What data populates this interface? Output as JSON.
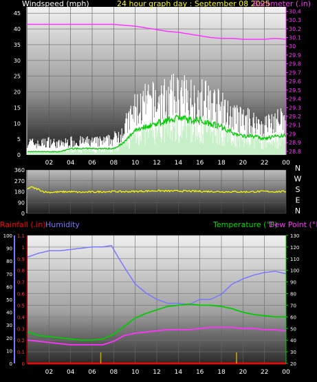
{
  "header": {
    "windspeed_label": "Windspeed (mph)",
    "title": "24 hour graph day : September 08 2025",
    "barometer_label": "Barometer (.in)"
  },
  "direction_letters": [
    "N",
    "W",
    "S",
    "E",
    "N"
  ],
  "lower_header": {
    "rainfall_label": "Rainfall (.in)",
    "humidity_label": "Humidity",
    "temperature_label": "Temperature (°F)",
    "dewpoint_label": "Dew Point (°F)"
  },
  "colors": {
    "wind_gust": "#ffffff",
    "wind_avg_band": "#c8f0c8",
    "wind_avg_line": "#00cc00",
    "barometer": "#ff33ff",
    "direction": "#ffff00",
    "humidity": "#7777ff",
    "temperature": "#00cc00",
    "dewpoint": "#ff33ff",
    "rainfall": "#ff0000",
    "rain_marks": "#ccaa00"
  },
  "chart_data": [
    {
      "type": "line",
      "id": "wind_baro",
      "x_ticks": [
        "02",
        "04",
        "06",
        "08",
        "10",
        "12",
        "14",
        "16",
        "18",
        "20",
        "22",
        "00"
      ],
      "x_range_hours": [
        0,
        24
      ],
      "y_left_ticks": [
        "0",
        "5",
        "10",
        "15",
        "20",
        "25",
        "30",
        "35",
        "40",
        "45"
      ],
      "y_left_range": [
        0,
        47
      ],
      "y_right_ticks": [
        "28.8",
        "28.9",
        "29",
        "29.1",
        "29.2",
        "29.3",
        "29.4",
        "29.5",
        "29.6",
        "29.7",
        "29.8",
        "29.9",
        "30",
        "30.1",
        "30.2",
        "30.3",
        "30.4"
      ],
      "y_right_range": [
        28.76,
        30.45
      ],
      "series": [
        {
          "key": "gust",
          "axis": "left",
          "x": [
            0,
            1,
            2,
            3,
            4,
            5,
            6,
            7,
            8,
            9,
            10,
            11,
            12,
            13,
            14,
            15,
            16,
            17,
            18,
            19,
            20,
            21,
            22,
            23,
            24
          ],
          "values": [
            5,
            4,
            5,
            4,
            5,
            5,
            5,
            5,
            6,
            10,
            17,
            19,
            20,
            21,
            22,
            21,
            21,
            20,
            17,
            14,
            13,
            12,
            11,
            13,
            12
          ]
        },
        {
          "key": "avg",
          "axis": "left",
          "x": [
            0,
            1,
            2,
            3,
            4,
            5,
            6,
            7,
            8,
            9,
            10,
            11,
            12,
            13,
            14,
            15,
            16,
            17,
            18,
            19,
            20,
            21,
            22,
            23,
            24
          ],
          "values": [
            1,
            1,
            1,
            1,
            2,
            2,
            2,
            2,
            2,
            4,
            8,
            9,
            10,
            11,
            12,
            11,
            11,
            10,
            9,
            7,
            6,
            6,
            5,
            6,
            6
          ]
        },
        {
          "key": "barometer",
          "axis": "right",
          "x": [
            0,
            1,
            2,
            3,
            4,
            5,
            6,
            7,
            8,
            9,
            10,
            11,
            12,
            13,
            14,
            15,
            16,
            17,
            18,
            19,
            20,
            21,
            22,
            23,
            24
          ],
          "values": [
            30.25,
            30.25,
            30.25,
            30.25,
            30.25,
            30.25,
            30.25,
            30.25,
            30.25,
            30.24,
            30.23,
            30.21,
            30.19,
            30.17,
            30.16,
            30.14,
            30.12,
            30.1,
            30.09,
            30.09,
            30.08,
            30.08,
            30.08,
            30.09,
            30.08
          ]
        }
      ]
    },
    {
      "type": "line",
      "id": "direction",
      "y_ticks": [
        "0",
        "90",
        "180",
        "270",
        "360"
      ],
      "y_range": [
        0,
        360
      ],
      "series": [
        {
          "key": "direction",
          "x": [
            0,
            0.3,
            0.6,
            1,
            1.5,
            2,
            3,
            4,
            5,
            6,
            7,
            8,
            9,
            10,
            11,
            12,
            13,
            14,
            15,
            16,
            17,
            18,
            19,
            20,
            21,
            22,
            23,
            24
          ],
          "values": [
            200,
            220,
            210,
            200,
            180,
            175,
            178,
            180,
            175,
            178,
            180,
            182,
            180,
            182,
            185,
            188,
            185,
            186,
            184,
            183,
            182,
            180,
            180,
            178,
            180,
            182,
            180,
            182
          ]
        }
      ]
    },
    {
      "type": "line",
      "id": "temp_humidity",
      "x_ticks": [
        "02",
        "04",
        "06",
        "08",
        "10",
        "12",
        "14",
        "16",
        "18",
        "20",
        "22",
        "00"
      ],
      "y_left_ticks": [
        "0",
        "10",
        "20",
        "30",
        "40",
        "50",
        "60",
        "70",
        "80",
        "90",
        "100"
      ],
      "y_left_range": [
        0,
        100
      ],
      "y_rain_ticks": [
        "0",
        "0.1",
        "0.2",
        "0.3",
        "0.4",
        "0.5",
        "0.6",
        "0.7",
        "0.8",
        "0.9",
        "1",
        "1.1"
      ],
      "y_rain_range": [
        0,
        1.1
      ],
      "y_right_ticks": [
        "20",
        "30",
        "40",
        "50",
        "60",
        "70",
        "80",
        "90",
        "100",
        "110",
        "120",
        "130"
      ],
      "y_right_range": [
        20,
        130
      ],
      "rain_marks_hours": [
        6.8,
        19.4
      ],
      "series": [
        {
          "key": "humidity",
          "axis": "left",
          "x": [
            0,
            1,
            2,
            3,
            4,
            5,
            6,
            7,
            7.8,
            8.2,
            9,
            10,
            11,
            12,
            13,
            14,
            15,
            16,
            17,
            18,
            19,
            20,
            21,
            22,
            23,
            24
          ],
          "values": [
            83,
            86,
            88,
            88,
            89,
            90,
            91,
            91,
            92,
            86,
            75,
            62,
            55,
            50,
            47,
            47,
            46,
            50,
            50,
            54,
            62,
            66,
            69,
            71,
            72,
            70
          ]
        },
        {
          "key": "temperature",
          "axis": "right",
          "x": [
            0,
            1,
            2,
            3,
            4,
            5,
            6,
            7,
            8,
            9,
            10,
            11,
            12,
            13,
            14,
            15,
            16,
            17,
            18,
            19,
            20,
            21,
            22,
            23,
            24
          ],
          "values": [
            47,
            44,
            43,
            42,
            41,
            40,
            40,
            41,
            45,
            52,
            59,
            63,
            66,
            69,
            70,
            71,
            70,
            70,
            69,
            67,
            64,
            62,
            61,
            60,
            60
          ]
        },
        {
          "key": "dewpoint",
          "axis": "right",
          "x": [
            0,
            1,
            2,
            3,
            4,
            5,
            6,
            7,
            8,
            9,
            10,
            11,
            12,
            13,
            14,
            15,
            16,
            17,
            18,
            19,
            20,
            21,
            22,
            23,
            24
          ],
          "values": [
            40,
            39,
            38,
            37,
            36,
            36,
            36,
            36,
            39,
            44,
            46,
            47,
            48,
            49,
            49,
            49,
            50,
            51,
            51,
            51,
            50,
            50,
            49,
            49,
            48
          ]
        },
        {
          "key": "rainfall",
          "axis": "rain",
          "x": [
            0,
            24
          ],
          "values": [
            0,
            0
          ]
        }
      ]
    }
  ]
}
